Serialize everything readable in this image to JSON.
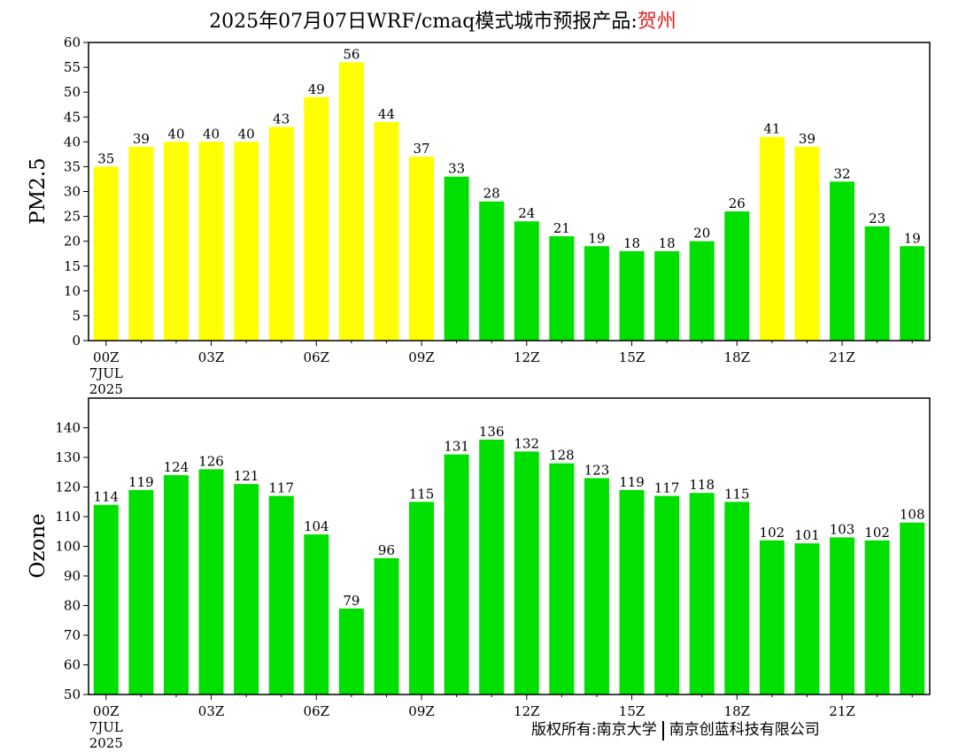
{
  "header": {
    "title_main": "2025年07月07日WRF/cmaq模式城市预报产品:",
    "city": "贺州"
  },
  "footer": {
    "copyright_a": "版权所有:南京大学",
    "copyright_b": "南京创蓝科技有限公司"
  },
  "colors": {
    "yellow": "#ffff00",
    "green": "#00e000"
  },
  "chart_data": [
    {
      "type": "bar",
      "ylabel": "PM2.5",
      "ylim": [
        0,
        60
      ],
      "yticks": [
        0,
        5,
        10,
        15,
        20,
        25,
        30,
        35,
        40,
        45,
        50,
        55,
        60
      ],
      "x": [
        "00Z",
        "01Z",
        "02Z",
        "03Z",
        "04Z",
        "05Z",
        "06Z",
        "07Z",
        "08Z",
        "09Z",
        "10Z",
        "11Z",
        "12Z",
        "13Z",
        "14Z",
        "15Z",
        "16Z",
        "17Z",
        "18Z",
        "19Z",
        "20Z",
        "21Z",
        "22Z",
        "23Z"
      ],
      "values": [
        35,
        39,
        40,
        40,
        40,
        43,
        49,
        56,
        44,
        37,
        33,
        28,
        24,
        21,
        19,
        18,
        18,
        20,
        26,
        41,
        39,
        32,
        23,
        19
      ],
      "bar_colors": [
        "yellow",
        "yellow",
        "yellow",
        "yellow",
        "yellow",
        "yellow",
        "yellow",
        "yellow",
        "yellow",
        "yellow",
        "green",
        "green",
        "green",
        "green",
        "green",
        "green",
        "green",
        "green",
        "green",
        "yellow",
        "yellow",
        "green",
        "green",
        "green"
      ],
      "xtick_labels": [
        "00Z",
        "03Z",
        "06Z",
        "09Z",
        "12Z",
        "15Z",
        "18Z",
        "21Z"
      ],
      "date_label": [
        "7JUL",
        "2025"
      ]
    },
    {
      "type": "bar",
      "ylabel": "Ozone",
      "ylim": [
        50,
        150
      ],
      "yticks": [
        50,
        60,
        70,
        80,
        90,
        100,
        110,
        120,
        130,
        140
      ],
      "x": [
        "00Z",
        "01Z",
        "02Z",
        "03Z",
        "04Z",
        "05Z",
        "06Z",
        "07Z",
        "08Z",
        "09Z",
        "10Z",
        "11Z",
        "12Z",
        "13Z",
        "14Z",
        "15Z",
        "16Z",
        "17Z",
        "18Z",
        "19Z",
        "20Z",
        "21Z",
        "22Z",
        "23Z"
      ],
      "values": [
        114,
        119,
        124,
        126,
        121,
        117,
        104,
        79,
        96,
        115,
        131,
        136,
        132,
        128,
        123,
        119,
        117,
        118,
        115,
        102,
        101,
        103,
        102,
        108
      ],
      "bar_colors": [
        "green",
        "green",
        "green",
        "green",
        "green",
        "green",
        "green",
        "green",
        "green",
        "green",
        "green",
        "green",
        "green",
        "green",
        "green",
        "green",
        "green",
        "green",
        "green",
        "green",
        "green",
        "green",
        "green",
        "green"
      ],
      "xtick_labels": [
        "00Z",
        "03Z",
        "06Z",
        "09Z",
        "12Z",
        "15Z",
        "18Z",
        "21Z"
      ],
      "date_label": [
        "7JUL",
        "2025"
      ]
    }
  ]
}
